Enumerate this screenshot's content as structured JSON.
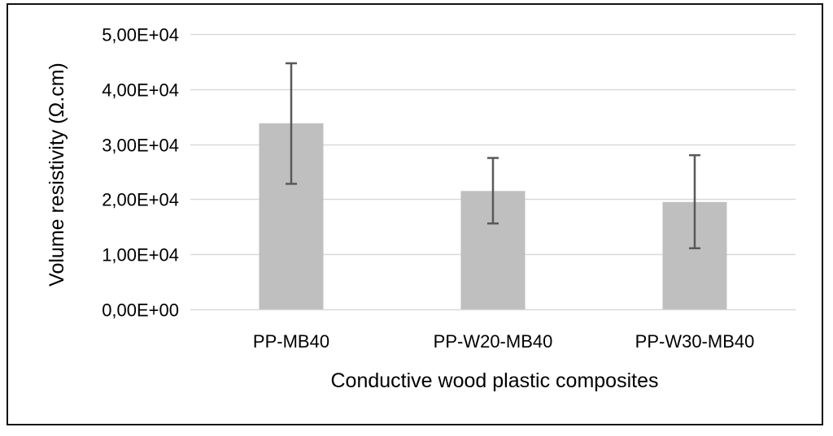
{
  "chart_data": {
    "type": "bar",
    "title": "",
    "xlabel": "Conductive wood plastic composites",
    "ylabel": "Volume resistivity (Ω.cm)",
    "categories": [
      "PP-MB40",
      "PP-W20-MB40",
      "PP-W30-MB40"
    ],
    "values": [
      33800,
      21500,
      19500
    ],
    "error_low": [
      22800,
      15600,
      11100
    ],
    "error_high": [
      44700,
      27500,
      28000
    ],
    "ylim": [
      0,
      50000
    ],
    "yticks": [
      0,
      10000,
      20000,
      30000,
      40000,
      50000
    ],
    "ytick_labels": [
      "0,00E+00",
      "1,00E+04",
      "2,00E+04",
      "3,00E+04",
      "4,00E+04",
      "5,00E+04"
    ],
    "grid": true,
    "legend": "none",
    "colors": {
      "bar": "#bfbfbf",
      "error_bar": "#595959",
      "grid": "#d9d9d9",
      "axis": "#d9d9d9"
    }
  }
}
